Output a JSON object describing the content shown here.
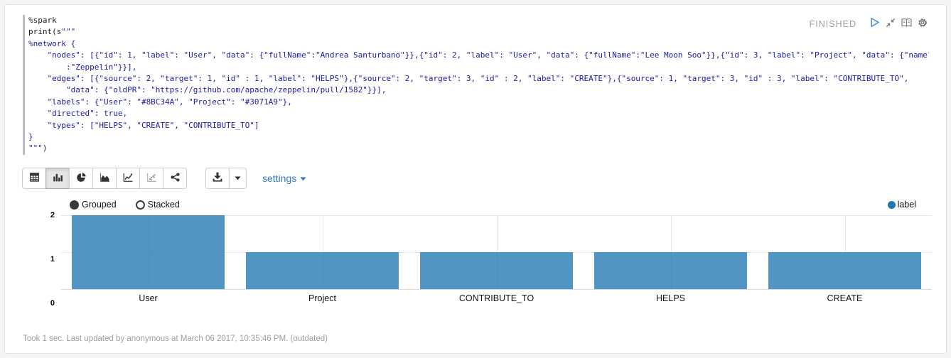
{
  "status": {
    "label": "FINISHED",
    "icons": [
      {
        "name": "play-icon"
      },
      {
        "name": "compress-icon"
      },
      {
        "name": "book-icon"
      },
      {
        "name": "gear-icon"
      }
    ]
  },
  "code": {
    "lines": [
      [
        {
          "t": "%spark",
          "c": "plain"
        }
      ],
      [
        {
          "t": "print(s",
          "c": "plain"
        },
        {
          "t": "\"\"\"",
          "c": "string"
        }
      ],
      [
        {
          "t": "%network {",
          "c": "string"
        }
      ],
      [
        {
          "t": "    \"nodes\": [{\"id\": 1, \"label\": \"User\", \"data\": {\"fullName\":\"Andrea Santurbano\"}},{\"id\": 2, \"label\": \"User\", \"data\": {\"fullName\":\"Lee Moon Soo\"}},{\"id\": 3, \"label\": \"Project\", \"data\": {\"name\"",
          "c": "string"
        }
      ],
      [
        {
          "t": "        :\"Zeppelin\"}}],",
          "c": "string"
        }
      ],
      [
        {
          "t": "    \"edges\": [{\"source\": 2, \"target\": 1, \"id\" : 1, \"label\": \"HELPS\"},{\"source\": 2, \"target\": 3, \"id\" : 2, \"label\": \"CREATE\"},{\"source\": 1, \"target\": 3, \"id\" : 3, \"label\": \"CONTRIBUTE_TO\",",
          "c": "string"
        }
      ],
      [
        {
          "t": "        \"data\": {\"oldPR\": \"https://github.com/apache/zeppelin/pull/1582\"}}],",
          "c": "string"
        }
      ],
      [
        {
          "t": "    \"labels\": {\"User\": \"#8BC34A\", \"Project\": \"#3071A9\"},",
          "c": "string"
        }
      ],
      [
        {
          "t": "    \"directed\": true,",
          "c": "string"
        }
      ],
      [
        {
          "t": "    \"types\": [\"HELPS\", \"CREATE\", \"CONTRIBUTE_TO\"]",
          "c": "string"
        }
      ],
      [
        {
          "t": "}",
          "c": "string"
        }
      ],
      [
        {
          "t": "\"\"\"",
          "c": "string"
        },
        {
          "t": ")",
          "c": "plain"
        }
      ]
    ]
  },
  "toolbar": {
    "chart_buttons": [
      {
        "id": "table",
        "icon": "table-icon",
        "active": false
      },
      {
        "id": "bar",
        "icon": "bar-chart-icon",
        "active": true
      },
      {
        "id": "pie",
        "icon": "pie-chart-icon",
        "active": false
      },
      {
        "id": "area",
        "icon": "area-chart-icon",
        "active": false
      },
      {
        "id": "line",
        "icon": "line-chart-icon",
        "active": false
      },
      {
        "id": "scatter",
        "icon": "scatter-chart-icon",
        "active": false
      },
      {
        "id": "network",
        "icon": "share-icon",
        "active": false
      }
    ],
    "download": {
      "icon": "download-icon",
      "caret_icon": "caret-down-icon"
    },
    "settings_label": "settings"
  },
  "chart_controls": {
    "options": [
      {
        "label": "Grouped",
        "selected": true
      },
      {
        "label": "Stacked",
        "selected": false
      }
    ]
  },
  "legend": {
    "items": [
      {
        "label": "label",
        "color": "#1f77b4"
      }
    ]
  },
  "chart_data": {
    "type": "bar",
    "categories": [
      "User",
      "Project",
      "CONTRIBUTE_TO",
      "HELPS",
      "CREATE"
    ],
    "values": [
      2,
      1,
      1,
      1,
      1
    ],
    "series": [
      {
        "name": "label",
        "values": [
          2,
          1,
          1,
          1,
          1
        ]
      }
    ],
    "title": "",
    "xlabel": "",
    "ylabel": "",
    "ylim": [
      0,
      2
    ],
    "yticks": [
      0,
      1,
      2
    ],
    "grid": true,
    "legend_position": "top-right",
    "bar_color": "#1f77b4",
    "bar_opacity": 0.78
  },
  "footer": {
    "text": "Took 1 sec. Last updated by anonymous at March 06 2017, 10:35:46 PM. (outdated)"
  }
}
